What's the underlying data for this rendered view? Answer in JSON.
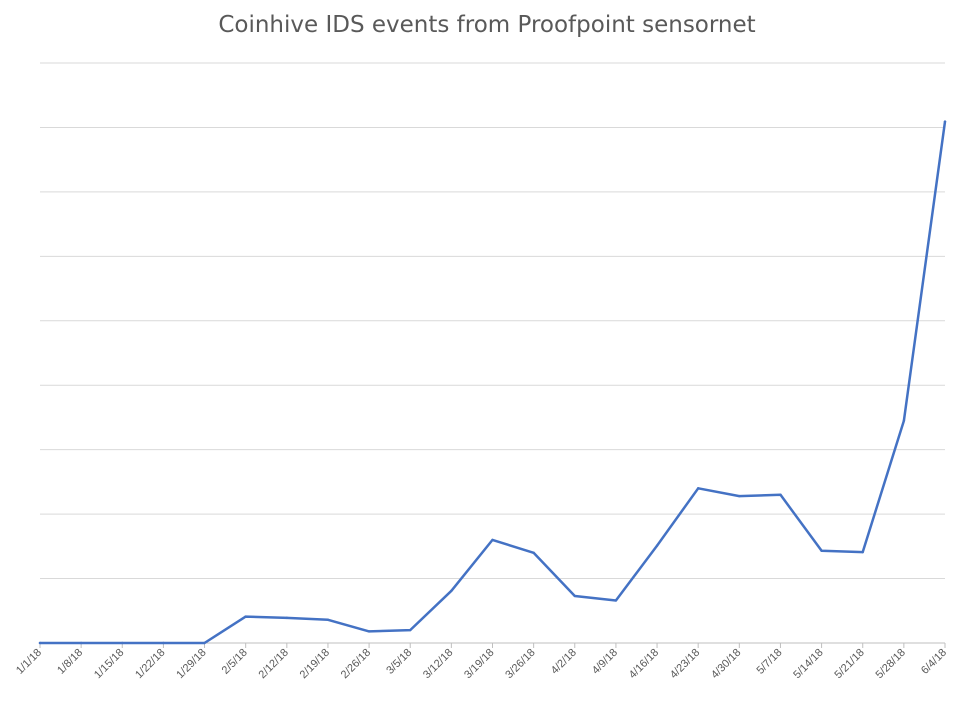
{
  "chart_data": {
    "type": "line",
    "title": "Coinhive IDS events from Proofpoint sensornet",
    "xlabel": "",
    "ylabel": "",
    "categories": [
      "1/1/18",
      "1/8/18",
      "1/15/18",
      "1/22/18",
      "1/29/18",
      "2/5/18",
      "2/12/18",
      "2/19/18",
      "2/26/18",
      "3/5/18",
      "3/12/18",
      "3/19/18",
      "3/26/18",
      "4/2/18",
      "4/9/18",
      "4/16/18",
      "4/23/18",
      "4/30/18",
      "5/7/18",
      "5/14/18",
      "5/21/18",
      "5/28/18",
      "6/4/18"
    ],
    "series": [
      {
        "values": [
          0.0,
          0.0,
          0.0,
          0.0,
          0.0,
          0.41,
          0.39,
          0.36,
          0.18,
          0.2,
          0.81,
          1.6,
          1.4,
          0.73,
          0.66,
          1.51,
          2.4,
          2.28,
          2.3,
          1.43,
          1.41,
          3.45,
          8.09
        ]
      }
    ],
    "ylim": [
      0,
      9
    ],
    "y_tick_labels_shown": false,
    "grid": true,
    "legend": "none",
    "colors": {
      "series": "#4472c4",
      "grid": "#d9d9d9",
      "text": "#595959"
    }
  }
}
